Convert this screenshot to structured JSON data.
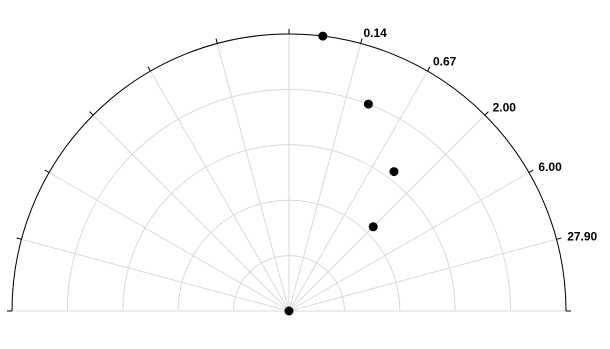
{
  "chart_data": {
    "type": "scatter",
    "projection": "polar",
    "angular_span": "upper half (0 to 180 degrees)",
    "grid": true,
    "rings": 5,
    "spokes_every_deg": 15,
    "angle_ticks": [
      "0.14",
      "0.67",
      "2.00",
      "6.00",
      "27.90"
    ],
    "points": [
      {
        "angle_deg": 0,
        "radius": 0
      },
      {
        "angle_deg": 83,
        "radius": 1.0
      },
      {
        "angle_deg": 69,
        "radius": 0.8
      },
      {
        "angle_deg": 53,
        "radius": 0.63
      },
      {
        "angle_deg": 45,
        "radius": 0.43
      }
    ],
    "colors": {
      "grid": "#d9d9d9",
      "outline": "#000000",
      "points": "#000000"
    }
  }
}
